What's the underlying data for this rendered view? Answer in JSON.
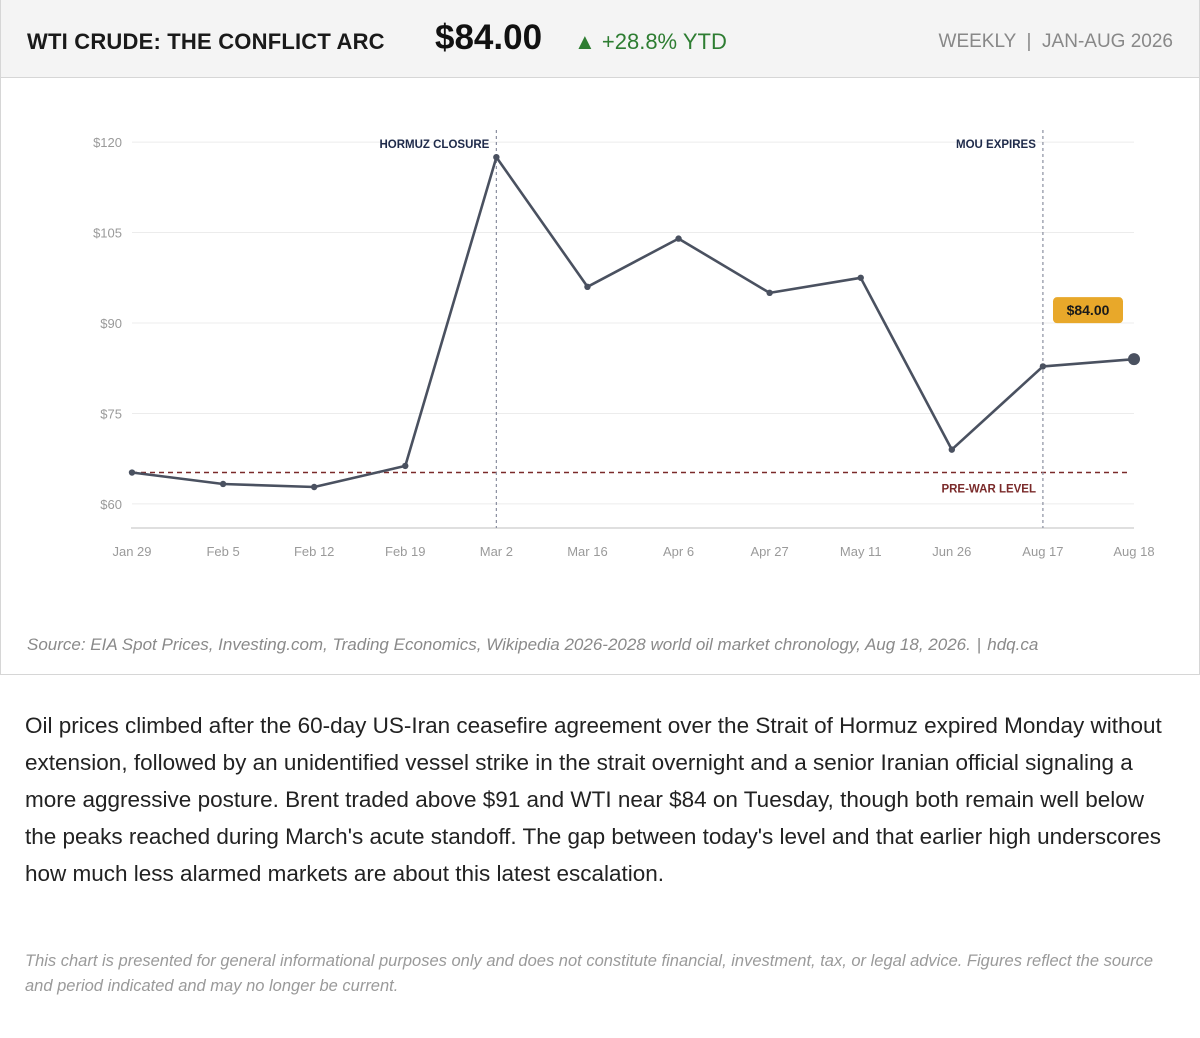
{
  "header": {
    "title": "WTI CRUDE: THE CONFLICT ARC",
    "price": "$84.00",
    "change": "▲ +28.8% YTD",
    "period": "WEEKLY",
    "range": "JAN-AUG 2026",
    "change_color": "#2e7d32"
  },
  "chart_data": {
    "type": "line",
    "categories": [
      "Jan 29",
      "Feb 5",
      "Feb 12",
      "Feb 19",
      "Mar 2",
      "Mar 16",
      "Apr 6",
      "Apr 27",
      "May 11",
      "Jun 26",
      "Aug 17",
      "Aug 18"
    ],
    "values": [
      65.2,
      63.3,
      62.8,
      66.3,
      117.5,
      96.0,
      104.0,
      95.0,
      97.5,
      69.0,
      82.8,
      84.0
    ],
    "ylim": [
      56,
      124
    ],
    "yticks": [
      60,
      75,
      90,
      105,
      120
    ],
    "ytick_labels": [
      "$60",
      "$75",
      "$90",
      "$105",
      "$120"
    ],
    "grid": true,
    "line_color": "#4a5160",
    "reference_line": {
      "value": 65.2,
      "label": "PRE-WAR LEVEL",
      "color": "#7a2a2a"
    },
    "events": [
      {
        "category": "Mar 2",
        "label": "HORMUZ CLOSURE"
      },
      {
        "category": "Aug 17",
        "label": "MOU EXPIRES"
      }
    ],
    "callout": {
      "category": "Aug 18",
      "label": "$84.00",
      "color": "#e8a82a"
    }
  },
  "source": {
    "text": "Source: EIA Spot Prices, Investing.com, Trading Economics, Wikipedia 2026-2028 world oil market chronology, Aug 18, 2026.",
    "separator": "|",
    "site": "hdq.ca"
  },
  "article": {
    "paragraph": "Oil prices climbed after the 60-day US-Iran ceasefire agreement over the Strait of Hormuz expired Monday without extension, followed by an unidentified vessel strike in the strait overnight and a senior Iranian official signaling a more aggressive posture. Brent traded above $91 and WTI near $84 on Tuesday, though both remain well below the peaks reached during March's acute standoff. The gap between today's level and that earlier high underscores how much less alarmed markets are about this latest escalation."
  },
  "disclaimer": "This chart is presented for general informational purposes only and does not constitute financial, investment, tax, or legal advice. Figures reflect the source and period indicated and may no longer be current."
}
